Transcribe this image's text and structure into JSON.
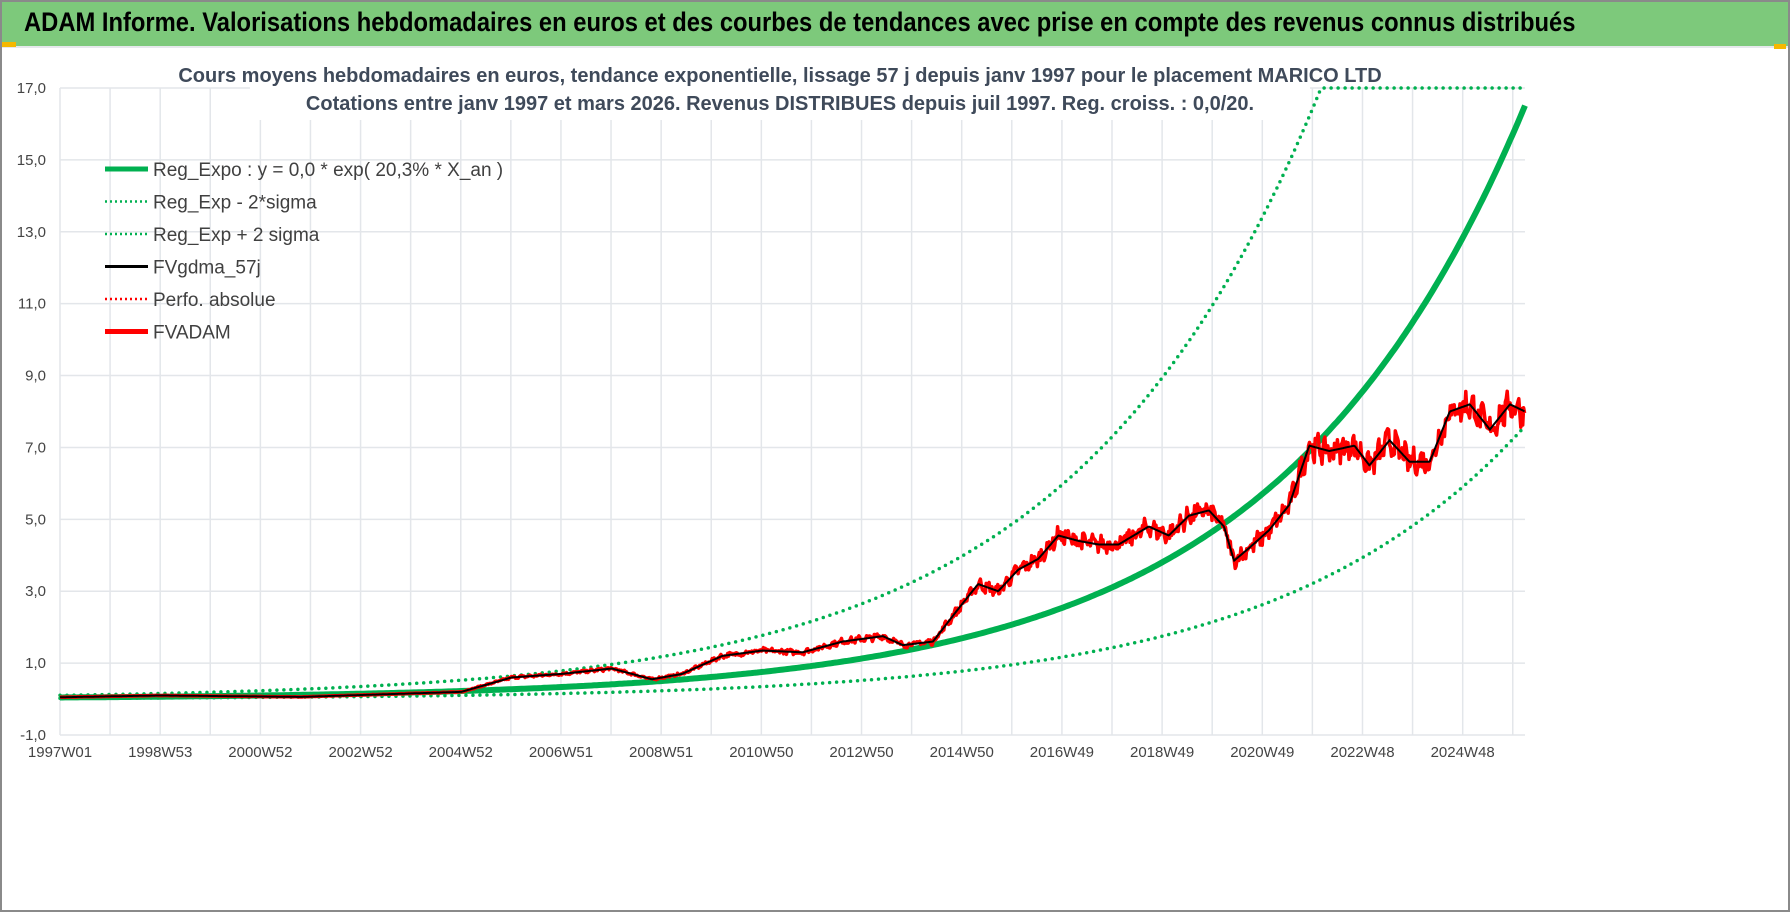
{
  "header": {
    "title": "ADAM Informe. Valorisations hebdomadaires en euros et des courbes de tendances avec prise en compte des revenus connus distribués"
  },
  "chart_data": {
    "type": "line",
    "title": "Cours moyens hebdomadaires en euros, tendance exponentielle, lissage 57 j depuis janv 1997  pour le placement MARICO LTD",
    "subtitle": "Cotations entre janv 1997 et mars 2026. Revenus DISTRIBUES depuis juil 1997. Reg. croiss. : 0,0/20.",
    "xlabel": "",
    "ylabel": "",
    "ylim": [
      -1,
      17
    ],
    "yticks": [
      "-1,0",
      "1,0",
      "3,0",
      "5,0",
      "7,0",
      "9,0",
      "11,0",
      "13,0",
      "15,0",
      "17,0"
    ],
    "xticks": [
      "1997W01",
      "1998W53",
      "2000W52",
      "2002W52",
      "2004W52",
      "2006W51",
      "2008W51",
      "2010W50",
      "2012W50",
      "2014W50",
      "2016W49",
      "2018W49",
      "2020W49",
      "2022W48",
      "2024W48"
    ],
    "xlim_years": [
      1997.0,
      2026.2
    ],
    "grid": true,
    "legend_position": "top-left",
    "regression": {
      "growth_rate": 0.203,
      "coef": 0.044,
      "upper_factor": 2.35,
      "lower_factor": 0.46,
      "cap": 17
    },
    "colors": {
      "reg": "#00b050",
      "fvadam": "#ff0000",
      "gdma": "#000000",
      "perfo": "#ff0000"
    },
    "legend": [
      {
        "name": "Reg_Expo : y = 0,0 * exp( 20,3% *  X_an )",
        "style": "solid-thick",
        "color": "#00b050"
      },
      {
        "name": "Reg_Exp - 2*sigma",
        "style": "dotted",
        "color": "#00b050"
      },
      {
        "name": "Reg_Exp + 2 sigma",
        "style": "dotted",
        "color": "#00b050"
      },
      {
        "name": "FVgdma_57j",
        "style": "solid",
        "color": "#000000"
      },
      {
        "name": "Perfo. absolue",
        "style": "dotted",
        "color": "#ff0000"
      },
      {
        "name": "FVADAM",
        "style": "solid-thick",
        "color": "#ff0000"
      }
    ],
    "fvadam_points": [
      [
        1997.0,
        0.05
      ],
      [
        1999.0,
        0.1
      ],
      [
        2001.8,
        0.06
      ],
      [
        2005.0,
        0.2
      ],
      [
        2006.0,
        0.6
      ],
      [
        2007.0,
        0.7
      ],
      [
        2008.0,
        0.85
      ],
      [
        2008.8,
        0.55
      ],
      [
        2009.4,
        0.7
      ],
      [
        2010.2,
        1.2
      ],
      [
        2011.0,
        1.35
      ],
      [
        2011.8,
        1.3
      ],
      [
        2012.6,
        1.6
      ],
      [
        2013.4,
        1.75
      ],
      [
        2013.8,
        1.5
      ],
      [
        2014.4,
        1.6
      ],
      [
        2014.9,
        2.5
      ],
      [
        2015.3,
        3.2
      ],
      [
        2015.7,
        3.0
      ],
      [
        2016.1,
        3.6
      ],
      [
        2016.5,
        3.9
      ],
      [
        2016.9,
        4.55
      ],
      [
        2017.3,
        4.4
      ],
      [
        2017.7,
        4.3
      ],
      [
        2018.1,
        4.3
      ],
      [
        2018.7,
        4.8
      ],
      [
        2019.1,
        4.55
      ],
      [
        2019.5,
        5.1
      ],
      [
        2019.9,
        5.25
      ],
      [
        2020.2,
        4.8
      ],
      [
        2020.4,
        3.85
      ],
      [
        2020.7,
        4.2
      ],
      [
        2021.1,
        4.7
      ],
      [
        2021.5,
        5.4
      ],
      [
        2021.9,
        7.05
      ],
      [
        2022.3,
        6.9
      ],
      [
        2022.8,
        7.05
      ],
      [
        2023.1,
        6.5
      ],
      [
        2023.5,
        7.2
      ],
      [
        2023.9,
        6.6
      ],
      [
        2024.3,
        6.6
      ],
      [
        2024.7,
        8.0
      ],
      [
        2025.1,
        8.2
      ],
      [
        2025.5,
        7.5
      ],
      [
        2025.9,
        8.2
      ],
      [
        2026.2,
        8.0
      ]
    ]
  }
}
